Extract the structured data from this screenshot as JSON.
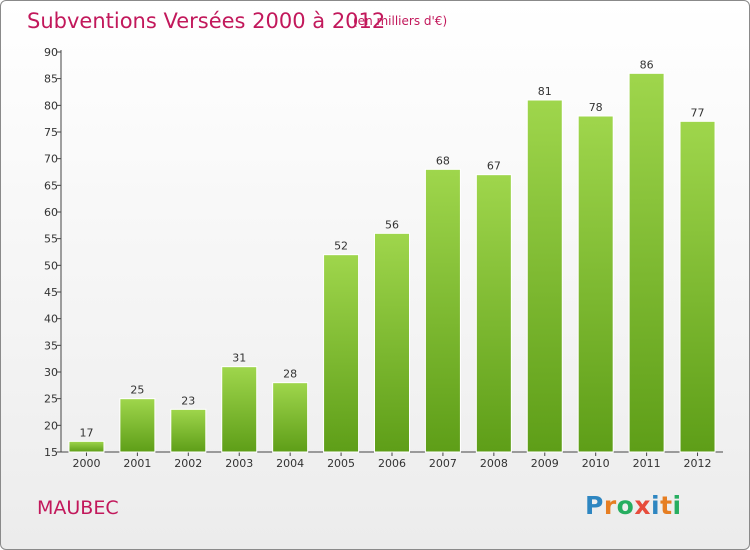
{
  "header": {
    "title": "Subventions Versées 2000 à 2012",
    "subtitle": "(en milliers d'€)"
  },
  "commune": "MAUBEC",
  "logo": {
    "letters": [
      "P",
      "r",
      "o",
      "x",
      "i",
      "t",
      "i"
    ],
    "colors": [
      "#2e86c1",
      "#e67e22",
      "#27ae60",
      "#e74c3c",
      "#2e86c1",
      "#e67e22",
      "#27ae60"
    ]
  },
  "chart_data": {
    "type": "bar",
    "categories": [
      "2000",
      "2001",
      "2002",
      "2003",
      "2004",
      "2005",
      "2006",
      "2007",
      "2008",
      "2009",
      "2010",
      "2011",
      "2012"
    ],
    "values": [
      17,
      25,
      23,
      31,
      28,
      52,
      56,
      68,
      67,
      81,
      78,
      86,
      77
    ],
    "yticks": [
      15,
      20,
      25,
      30,
      35,
      40,
      45,
      50,
      55,
      60,
      65,
      70,
      75,
      80,
      85,
      90
    ],
    "ylim": [
      15,
      90
    ],
    "grid": false,
    "bar_color": "#7dc12f"
  }
}
